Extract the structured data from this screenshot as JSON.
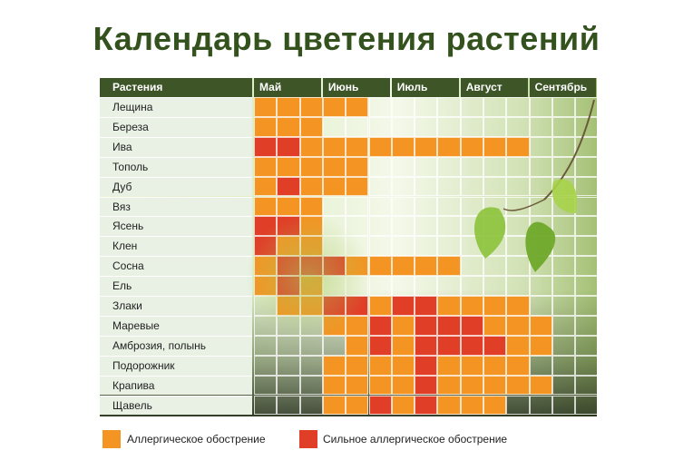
{
  "title": "Календарь цветения растений",
  "header_label": "Растения",
  "colors": {
    "allergic": "#f39423",
    "strong": "#e03e27"
  },
  "chart_data": {
    "type": "heatmap",
    "title": "Календарь цветения растений",
    "months": [
      "Май",
      "Июнь",
      "Июль",
      "Август",
      "Сентябрь"
    ],
    "cells_per_month": 3,
    "value_legend": {
      "1": "Аллергическое обострение",
      "2": "Сильное аллергическое обострение"
    },
    "rows": [
      {
        "plant": "Лещина",
        "values": [
          1,
          1,
          1,
          1,
          1,
          0,
          0,
          0,
          0,
          0,
          0,
          0,
          0,
          0,
          0
        ]
      },
      {
        "plant": "Береза",
        "values": [
          1,
          1,
          1,
          0,
          0,
          0,
          0,
          0,
          0,
          0,
          0,
          0,
          0,
          0,
          0
        ]
      },
      {
        "plant": "Ива",
        "values": [
          2,
          2,
          1,
          1,
          1,
          1,
          1,
          1,
          1,
          1,
          1,
          1,
          0,
          0,
          0
        ]
      },
      {
        "plant": "Тополь",
        "values": [
          1,
          1,
          1,
          1,
          1,
          0,
          0,
          0,
          0,
          0,
          0,
          0,
          0,
          0,
          0
        ]
      },
      {
        "plant": "Дуб",
        "values": [
          1,
          2,
          1,
          1,
          1,
          0,
          0,
          0,
          0,
          0,
          0,
          0,
          0,
          0,
          0
        ]
      },
      {
        "plant": "Вяз",
        "values": [
          1,
          1,
          1,
          0,
          0,
          0,
          0,
          0,
          0,
          0,
          0,
          0,
          0,
          0,
          0
        ]
      },
      {
        "plant": "Ясень",
        "values": [
          2,
          2,
          1,
          0,
          0,
          0,
          0,
          0,
          0,
          0,
          0,
          0,
          0,
          0,
          0
        ]
      },
      {
        "plant": "Клен",
        "values": [
          2,
          1,
          1,
          0,
          0,
          0,
          0,
          0,
          0,
          0,
          0,
          0,
          0,
          0,
          0
        ]
      },
      {
        "plant": "Сосна",
        "values": [
          1,
          2,
          2,
          2,
          1,
          1,
          1,
          1,
          1,
          0,
          0,
          0,
          0,
          0,
          0
        ]
      },
      {
        "plant": "Ель",
        "values": [
          1,
          2,
          1,
          0,
          0,
          0,
          0,
          0,
          0,
          0,
          0,
          0,
          0,
          0,
          0
        ]
      },
      {
        "plant": "Злаки",
        "values": [
          0,
          1,
          1,
          2,
          2,
          1,
          2,
          2,
          1,
          1,
          1,
          1,
          0,
          0,
          0
        ]
      },
      {
        "plant": "Маревые",
        "values": [
          0,
          0,
          0,
          1,
          1,
          2,
          1,
          2,
          2,
          2,
          1,
          1,
          1,
          0,
          0
        ]
      },
      {
        "plant": "Амброзия, полынь",
        "values": [
          0,
          0,
          0,
          0,
          1,
          2,
          1,
          2,
          2,
          2,
          2,
          1,
          1,
          0,
          0
        ]
      },
      {
        "plant": "Подорожник",
        "values": [
          0,
          0,
          0,
          1,
          1,
          1,
          1,
          2,
          1,
          1,
          1,
          1,
          0,
          0,
          0
        ]
      },
      {
        "plant": "Крапива",
        "values": [
          0,
          0,
          0,
          1,
          1,
          1,
          1,
          2,
          1,
          1,
          1,
          1,
          1,
          0,
          0
        ]
      },
      {
        "plant": "Щавель",
        "values": [
          0,
          0,
          0,
          1,
          1,
          2,
          1,
          2,
          1,
          1,
          1,
          0,
          0,
          0,
          0
        ]
      }
    ]
  },
  "legend": [
    {
      "label": "Аллергическое обострение",
      "color": "#f39423"
    },
    {
      "label": "Сильное аллергическое обострение",
      "color": "#e03e27"
    }
  ]
}
